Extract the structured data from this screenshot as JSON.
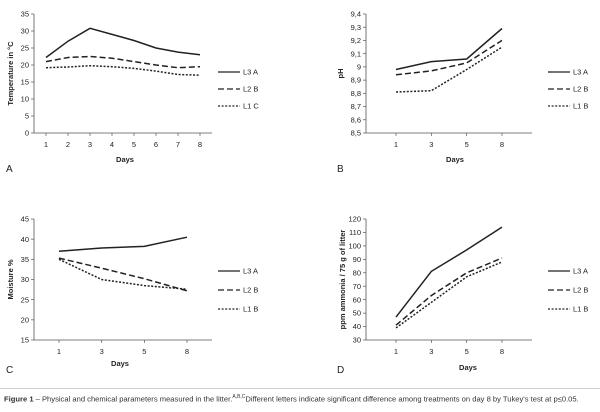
{
  "caption": {
    "label": "Figure 1",
    "text": " – Physical and chemical parameters measured in the litter.",
    "superscript": "A,B,C",
    "text2": "Different letters indicate significant difference among treatments on day 8 by Tukey's test at p≤0.05."
  },
  "chart_data": [
    {
      "panel": "A",
      "type": "line",
      "xlabel": "Days",
      "ylabel": "Temperature in °C",
      "x": [
        1,
        2,
        3,
        4,
        5,
        6,
        7,
        8
      ],
      "x_tick_labels": [
        "1",
        "2",
        "3",
        "4",
        "5",
        "6",
        "7",
        "8"
      ],
      "ylim": [
        0,
        35
      ],
      "y_ticks": [
        0,
        5,
        10,
        15,
        20,
        25,
        30,
        35
      ],
      "y_tick_labels": [
        "0",
        "5",
        "10",
        "15",
        "20",
        "25",
        "30",
        "35"
      ],
      "grid": false,
      "legend_placement": "right",
      "series": [
        {
          "name": "L3 A",
          "style": "solid",
          "values": [
            22.2,
            27.0,
            30.8,
            29.0,
            27.2,
            25.0,
            23.8,
            23.0
          ]
        },
        {
          "name": "L2 B",
          "style": "dashed",
          "values": [
            21.0,
            22.2,
            22.5,
            22.0,
            21.0,
            20.0,
            19.2,
            19.5
          ]
        },
        {
          "name": "L1 C",
          "style": "dotted",
          "values": [
            19.2,
            19.4,
            19.8,
            19.5,
            19.0,
            18.2,
            17.2,
            17.0
          ]
        }
      ]
    },
    {
      "panel": "B",
      "type": "line",
      "xlabel": "Days",
      "ylabel": "pH",
      "x": [
        1,
        3,
        5,
        8
      ],
      "x_tick_labels": [
        "1",
        "3",
        "5",
        "8"
      ],
      "ylim": [
        8.5,
        9.4
      ],
      "y_ticks": [
        8.5,
        8.6,
        8.7,
        8.8,
        8.9,
        9.0,
        9.1,
        9.2,
        9.3,
        9.4
      ],
      "y_tick_labels": [
        "8,5",
        "8,6",
        "8,7",
        "8,8",
        "8,9",
        "9",
        "9,1",
        "9,2",
        "9,3",
        "9,4"
      ],
      "grid": false,
      "legend_placement": "right",
      "series": [
        {
          "name": "L3 A",
          "style": "solid",
          "values": [
            8.98,
            9.04,
            9.06,
            9.29
          ]
        },
        {
          "name": "L2 B",
          "style": "dashed",
          "values": [
            8.94,
            8.97,
            9.03,
            9.2
          ]
        },
        {
          "name": "L1 B",
          "style": "dotted",
          "values": [
            8.81,
            8.82,
            8.98,
            9.15
          ]
        }
      ]
    },
    {
      "panel": "C",
      "type": "line",
      "xlabel": "Days",
      "ylabel": "Moisture %",
      "x": [
        1,
        3,
        5,
        8
      ],
      "x_tick_labels": [
        "1",
        "3",
        "5",
        "8"
      ],
      "ylim": [
        15,
        45
      ],
      "y_ticks": [
        15,
        20,
        25,
        30,
        35,
        40,
        45
      ],
      "y_tick_labels": [
        "15",
        "20",
        "25",
        "30",
        "35",
        "40",
        "45"
      ],
      "grid": false,
      "legend_placement": "right",
      "series": [
        {
          "name": "L3 A",
          "style": "solid",
          "values": [
            37.0,
            37.8,
            38.2,
            40.5
          ]
        },
        {
          "name": "L2 B",
          "style": "dashed",
          "values": [
            35.3,
            32.8,
            30.2,
            27.2
          ]
        },
        {
          "name": "L1 B",
          "style": "dotted",
          "values": [
            35.0,
            30.0,
            28.5,
            27.6
          ]
        }
      ]
    },
    {
      "panel": "D",
      "type": "line",
      "xlabel": "Days",
      "ylabel": "ppm ammonia / 75 g of litter",
      "x": [
        1,
        3,
        5,
        8
      ],
      "x_tick_labels": [
        "1",
        "3",
        "5",
        "8"
      ],
      "ylim": [
        30,
        120
      ],
      "y_ticks": [
        30,
        40,
        50,
        60,
        70,
        80,
        90,
        100,
        110,
        120
      ],
      "y_tick_labels": [
        "30",
        "40",
        "50",
        "60",
        "70",
        "80",
        "90",
        "100",
        "110",
        "120"
      ],
      "grid": false,
      "legend_placement": "right",
      "series": [
        {
          "name": "L3 A",
          "style": "solid",
          "values": [
            47,
            81,
            97,
            114
          ]
        },
        {
          "name": "L2 B",
          "style": "dashed",
          "values": [
            41,
            63,
            80,
            91
          ]
        },
        {
          "name": "L1 B",
          "style": "dotted",
          "values": [
            39,
            58,
            77,
            88
          ]
        }
      ]
    }
  ]
}
